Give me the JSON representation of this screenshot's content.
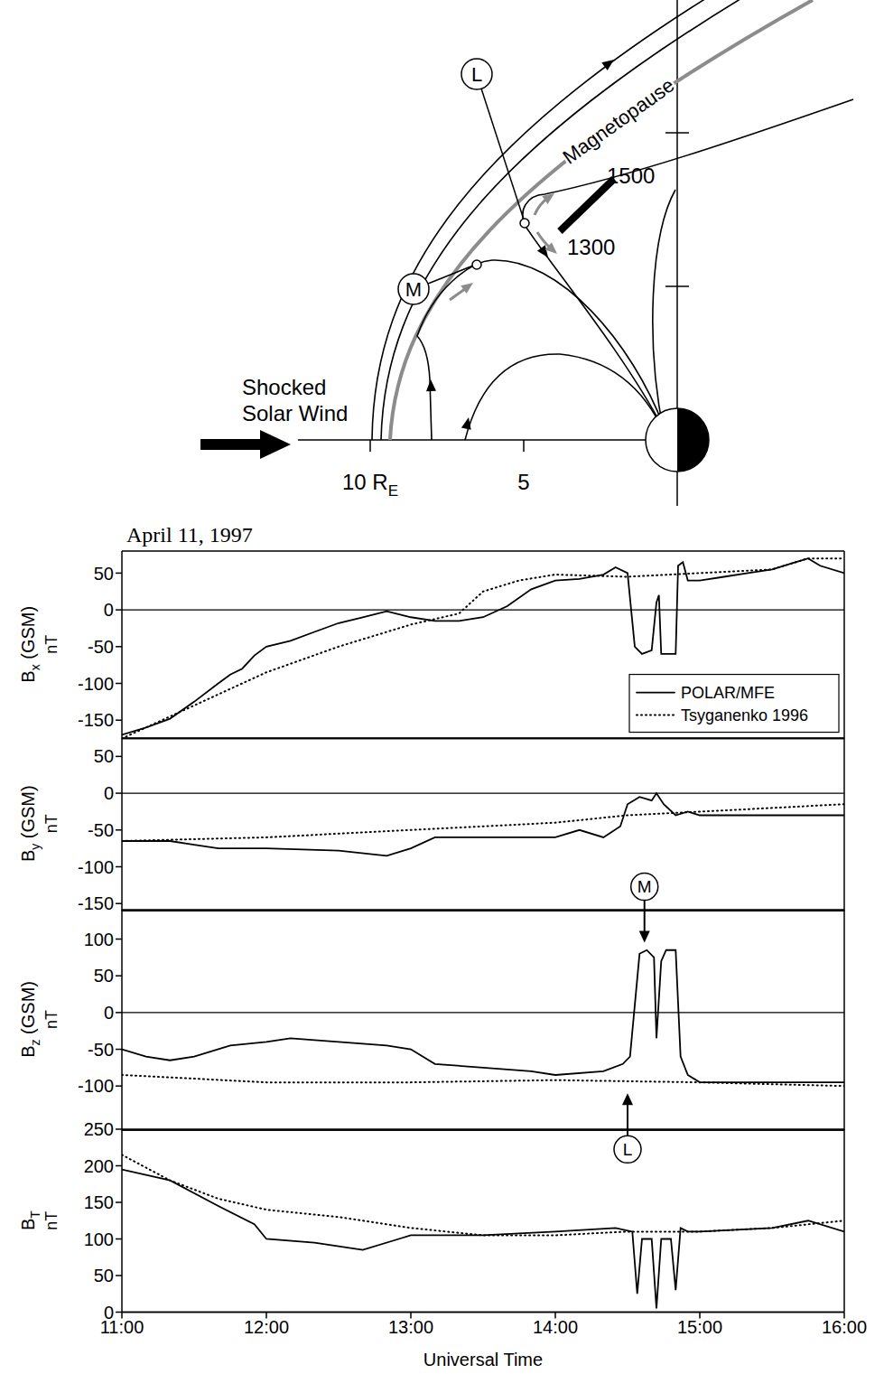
{
  "diagram": {
    "boundary_label": "Magnetopause",
    "points": [
      "L",
      "M"
    ],
    "orbit_labels": [
      "1300",
      "1500"
    ],
    "flow_label": [
      "Shocked",
      "Solar Wind"
    ],
    "distance_ticks": [
      {
        "value": 10,
        "label": "10 R",
        "sub": "E"
      },
      {
        "value": 5,
        "label": "5"
      }
    ]
  },
  "chart_data": [
    {
      "type": "line",
      "title": "April 11, 1997",
      "ylabel": {
        "text": "B",
        "sub": "x",
        "suffix": "(GSM)",
        "unit": "nT"
      },
      "xlim": [
        11,
        16
      ],
      "xticks": [
        {
          "value": 11,
          "label": "11:00"
        },
        {
          "value": 12,
          "label": "12:00"
        },
        {
          "value": 13,
          "label": "13:00"
        },
        {
          "value": 14,
          "label": "14:00"
        },
        {
          "value": 15,
          "label": "15:00"
        },
        {
          "value": 16,
          "label": "16:00"
        }
      ],
      "ylim": [
        -175,
        80
      ],
      "yticks": [
        -150,
        -100,
        -50,
        0,
        50
      ],
      "tick_labels": "y",
      "legend": "lower right",
      "series": [
        {
          "name": "POLAR/MFE",
          "color": "#000000",
          "line_style": "solid",
          "x": [
            11,
            11.167,
            11.333,
            11.5,
            11.667,
            11.75,
            11.833,
            11.917,
            12,
            12.167,
            12.333,
            12.5,
            12.667,
            12.833,
            13,
            13.167,
            13.333,
            13.5,
            13.667,
            13.833,
            14,
            14.167,
            14.333,
            14.417,
            14.5,
            14.55,
            14.6,
            14.667,
            14.7,
            14.717,
            14.733,
            14.8,
            14.833,
            14.85,
            14.883,
            14.917,
            15,
            15.167,
            15.333,
            15.5,
            15.667,
            15.75,
            15.833,
            16
          ],
          "values": [
            -170,
            -160,
            -148,
            -125,
            -100,
            -88,
            -80,
            -62,
            -50,
            -42,
            -30,
            -18,
            -10,
            -2,
            -10,
            -15,
            -15,
            -10,
            5,
            28,
            40,
            42,
            48,
            58,
            50,
            -50,
            -60,
            -55,
            10,
            20,
            -60,
            -60,
            -60,
            60,
            65,
            40,
            40,
            45,
            50,
            55,
            65,
            70,
            60,
            50
          ]
        },
        {
          "name": "Tsyganenko 1996",
          "color": "#000000",
          "line_style": "dotted",
          "x": [
            11,
            11.5,
            12,
            12.5,
            13,
            13.333,
            13.5,
            13.75,
            14,
            14.5,
            15,
            15.5,
            15.75,
            16
          ],
          "values": [
            -175,
            -130,
            -85,
            -50,
            -20,
            -5,
            25,
            40,
            48,
            45,
            50,
            55,
            70,
            70
          ]
        }
      ]
    },
    {
      "type": "line",
      "ylabel": {
        "text": "B",
        "sub": "y",
        "suffix": "(GSM)",
        "unit": "nT"
      },
      "xlim": [
        11,
        16
      ],
      "xticks": [
        {
          "value": 11,
          "label": "11:00"
        },
        {
          "value": 12,
          "label": "12:00"
        },
        {
          "value": 13,
          "label": "13:00"
        },
        {
          "value": 14,
          "label": "14:00"
        },
        {
          "value": 15,
          "label": "15:00"
        },
        {
          "value": 16,
          "label": "16:00"
        }
      ],
      "ylim": [
        -160,
        75
      ],
      "yticks": [
        -150,
        -100,
        -50,
        0,
        50
      ],
      "tick_labels": "y",
      "series": [
        {
          "name": "POLAR/MFE",
          "color": "#000000",
          "line_style": "solid",
          "x": [
            11,
            11.333,
            11.5,
            11.667,
            12,
            12.5,
            12.833,
            13,
            13.167,
            13.5,
            14,
            14.167,
            14.333,
            14.45,
            14.5,
            14.583,
            14.667,
            14.7,
            14.75,
            14.833,
            14.917,
            15,
            15.5,
            16
          ],
          "values": [
            -65,
            -65,
            -70,
            -75,
            -75,
            -78,
            -85,
            -75,
            -60,
            -60,
            -60,
            -50,
            -60,
            -45,
            -15,
            -5,
            -10,
            0,
            -15,
            -30,
            -25,
            -30,
            -30,
            -30
          ]
        },
        {
          "name": "Tsyganenko 1996",
          "color": "#000000",
          "line_style": "dotted",
          "x": [
            11,
            12,
            13,
            14,
            14.5,
            15,
            16
          ],
          "values": [
            -65,
            -60,
            -50,
            -40,
            -30,
            -25,
            -15
          ]
        }
      ]
    },
    {
      "type": "line",
      "ylabel": {
        "text": "B",
        "sub": "z",
        "suffix": "(GSM)",
        "unit": "nT"
      },
      "xlim": [
        11,
        16
      ],
      "xticks": [
        {
          "value": 11,
          "label": "11:00"
        },
        {
          "value": 12,
          "label": "12:00"
        },
        {
          "value": 13,
          "label": "13:00"
        },
        {
          "value": 14,
          "label": "14:00"
        },
        {
          "value": 15,
          "label": "15:00"
        },
        {
          "value": 16,
          "label": "16:00"
        }
      ],
      "ylim": [
        -160,
        140
      ],
      "yticks": [
        -100,
        -50,
        0,
        50,
        100
      ],
      "tick_labels": "y",
      "annotations": [
        {
          "text": "M",
          "x": 14.617,
          "y": 95
        },
        {
          "text": "L",
          "x": 14.5,
          "y": -110
        }
      ],
      "series": [
        {
          "name": "POLAR/MFE",
          "color": "#000000",
          "line_style": "solid",
          "x": [
            11,
            11.167,
            11.333,
            11.5,
            11.75,
            12,
            12.167,
            12.5,
            12.833,
            13,
            13.167,
            13.5,
            13.833,
            14,
            14.333,
            14.467,
            14.517,
            14.583,
            14.633,
            14.683,
            14.7,
            14.733,
            14.767,
            14.833,
            14.867,
            14.917,
            15,
            16
          ],
          "values": [
            -50,
            -60,
            -65,
            -60,
            -45,
            -40,
            -35,
            -40,
            -45,
            -50,
            -70,
            -75,
            -80,
            -85,
            -80,
            -70,
            -60,
            80,
            85,
            75,
            -35,
            70,
            85,
            85,
            -60,
            -85,
            -95,
            -95
          ]
        },
        {
          "name": "Tsyganenko 1996",
          "color": "#000000",
          "line_style": "dotted",
          "x": [
            11,
            11.5,
            12,
            13,
            14,
            15,
            16
          ],
          "values": [
            -85,
            -90,
            -95,
            -95,
            -92,
            -95,
            -100
          ]
        }
      ]
    },
    {
      "type": "line",
      "ylabel": {
        "text": "B",
        "sub": "T",
        "unit": "nT"
      },
      "xlabel": "Universal Time",
      "xlim": [
        11,
        16
      ],
      "xticks": [
        {
          "value": 11,
          "label": "11:00"
        },
        {
          "value": 12,
          "label": "12:00"
        },
        {
          "value": 13,
          "label": "13:00"
        },
        {
          "value": 14,
          "label": "14:00"
        },
        {
          "value": 15,
          "label": "15:00"
        },
        {
          "value": 16,
          "label": "16:00"
        }
      ],
      "ylim": [
        0,
        250
      ],
      "yticks": [
        0,
        50,
        100,
        150,
        200,
        250
      ],
      "series": [
        {
          "name": "POLAR/MFE",
          "color": "#000000",
          "line_style": "solid",
          "x": [
            11,
            11.333,
            11.667,
            11.917,
            12,
            12.333,
            12.667,
            12.917,
            13,
            13.5,
            14,
            14.417,
            14.533,
            14.567,
            14.6,
            14.667,
            14.7,
            14.733,
            14.8,
            14.833,
            14.867,
            14.917,
            15,
            15.5,
            15.75,
            16
          ],
          "values": [
            195,
            180,
            145,
            120,
            100,
            95,
            85,
            100,
            105,
            105,
            110,
            115,
            110,
            25,
            100,
            100,
            5,
            100,
            100,
            30,
            115,
            110,
            110,
            115,
            125,
            110
          ]
        },
        {
          "name": "Tsyganenko 1996",
          "color": "#000000",
          "line_style": "dotted",
          "x": [
            11,
            11.333,
            11.667,
            12,
            12.5,
            13,
            13.5,
            14,
            14.5,
            15,
            15.5,
            15.75,
            16
          ],
          "values": [
            215,
            180,
            155,
            140,
            130,
            115,
            105,
            105,
            110,
            110,
            115,
            120,
            125
          ]
        }
      ]
    }
  ]
}
